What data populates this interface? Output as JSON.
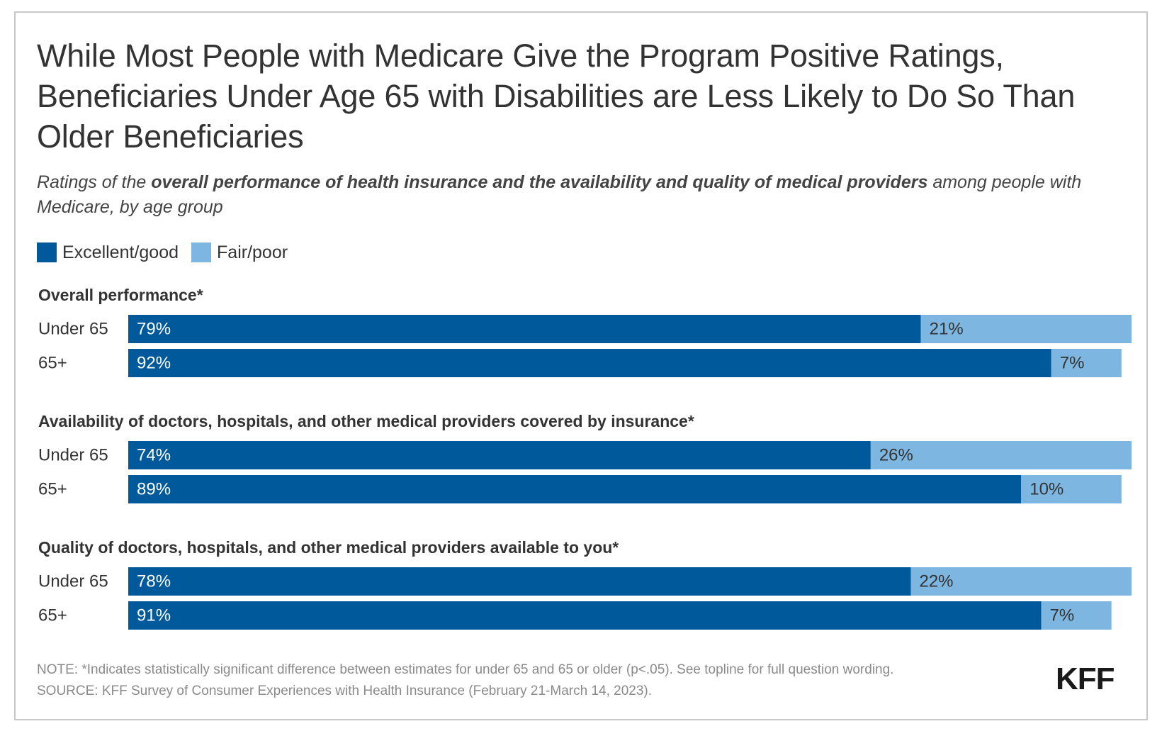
{
  "title": "While Most People with Medicare Give the Program Positive Ratings, Beneficiaries Under Age 65 with Disabilities are Less Likely to Do So Than Older Beneficiaries",
  "subtitle": {
    "prefix": "Ratings of the ",
    "bold": "overall performance of health insurance and the availability and quality of medical providers",
    "suffix": " among people with Medicare, by age group"
  },
  "colors": {
    "excellent_good": "#00599A",
    "fair_poor": "#7DB6E0"
  },
  "legend": {
    "excellent_good": "Excellent/good",
    "fair_poor": "Fair/poor"
  },
  "chart_data": {
    "type": "bar",
    "orientation": "horizontal",
    "stacked": true,
    "xlim": [
      0,
      100
    ],
    "series_names": [
      "Excellent/good",
      "Fair/poor"
    ],
    "groups": [
      {
        "label": "Overall performance*",
        "rows": [
          {
            "category": "Under 65",
            "values": [
              79,
              21
            ],
            "labels": [
              "79%",
              "21%"
            ]
          },
          {
            "category": "65+",
            "values": [
              92,
              7
            ],
            "labels": [
              "92%",
              "7%"
            ]
          }
        ]
      },
      {
        "label": "Availability of doctors, hospitals, and other medical providers covered by insurance*",
        "rows": [
          {
            "category": "Under 65",
            "values": [
              74,
              26
            ],
            "labels": [
              "74%",
              "26%"
            ]
          },
          {
            "category": "65+",
            "values": [
              89,
              10
            ],
            "labels": [
              "89%",
              "10%"
            ]
          }
        ]
      },
      {
        "label": "Quality of doctors, hospitals, and other medical providers available to you*",
        "rows": [
          {
            "category": "Under 65",
            "values": [
              78,
              22
            ],
            "labels": [
              "78%",
              "22%"
            ]
          },
          {
            "category": "65+",
            "values": [
              91,
              7
            ],
            "labels": [
              "91%",
              "7%"
            ]
          }
        ]
      }
    ]
  },
  "footer": {
    "note": "NOTE: *Indicates statistically significant difference between estimates for under 65 and 65 or older (p<.05). See topline for full question wording.",
    "source": "SOURCE: KFF Survey of Consumer Experiences with Health Insurance (February 21-March 14, 2023)."
  },
  "logo": "KFF"
}
